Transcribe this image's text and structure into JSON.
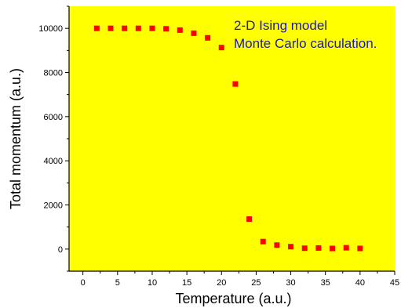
{
  "chart_data": {
    "type": "scatter",
    "title": "",
    "xlabel": "Temperature (a.u.)",
    "ylabel": "Total momentum (a.u.)",
    "xlim": [
      -2,
      45
    ],
    "ylim": [
      -1000,
      11000
    ],
    "xticks": [
      0,
      5,
      10,
      15,
      20,
      25,
      30,
      35,
      40,
      45
    ],
    "yticks": [
      0,
      2000,
      4000,
      6000,
      8000,
      10000
    ],
    "xtick_labels": [
      "0",
      "5",
      "10",
      "15",
      "20",
      "25",
      "30",
      "35",
      "40",
      "45"
    ],
    "ytick_labels": [
      "0",
      "2000",
      "4000",
      "6000",
      "8000",
      "10000"
    ],
    "annotations": [
      "2-D Ising model",
      "Monte Carlo calculation."
    ],
    "grid": false,
    "colors": {
      "plot_background": "#ffff00",
      "marker": "#ff0000",
      "annotation": "#1a1aa6"
    },
    "series": [
      {
        "marker": "square",
        "x": [
          2,
          4,
          6,
          8,
          10,
          12,
          14,
          16,
          18,
          20,
          22,
          24,
          26,
          28,
          30,
          32,
          34,
          36,
          38,
          40
        ],
        "y": [
          10000,
          10000,
          10000,
          10000,
          10000,
          9980,
          9920,
          9780,
          9570,
          9130,
          7480,
          1360,
          340,
          180,
          110,
          40,
          50,
          30,
          60,
          30
        ]
      }
    ]
  }
}
